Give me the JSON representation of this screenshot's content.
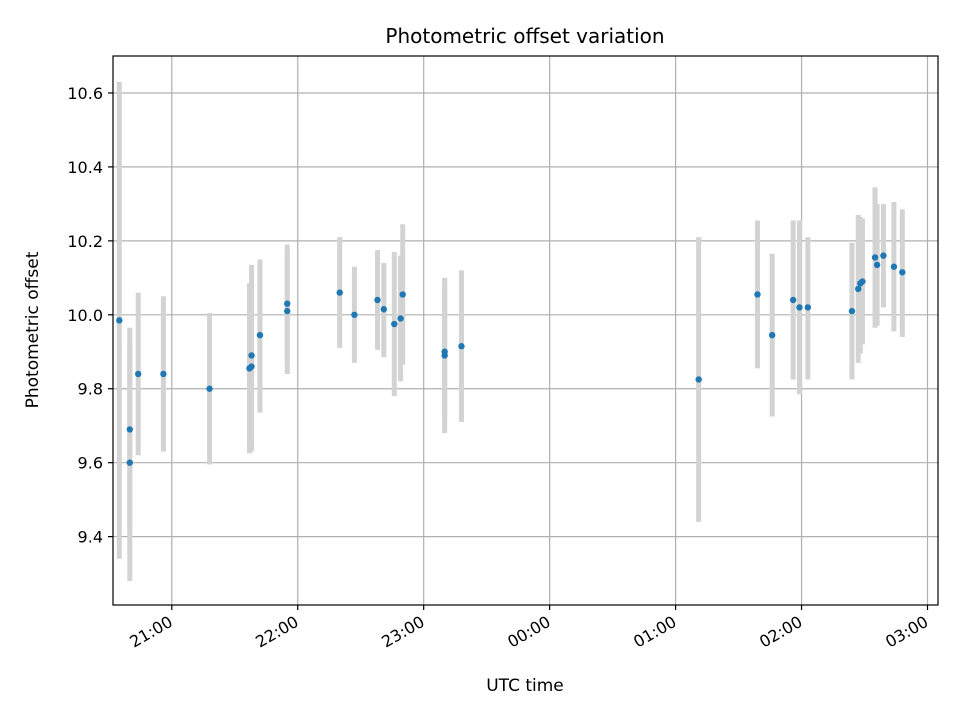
{
  "chart_data": {
    "type": "scatter",
    "title": "Photometric offset variation",
    "xlabel": "UTC time",
    "ylabel": "Photometric offset",
    "x_axis_kind": "time",
    "xlim": [
      "20:32",
      "03:05"
    ],
    "ylim": [
      9.215,
      10.7
    ],
    "x_ticks": [
      "21:00",
      "22:00",
      "23:00",
      "00:00",
      "01:00",
      "02:00",
      "03:00"
    ],
    "y_ticks": [
      9.4,
      9.6,
      9.8,
      10.0,
      10.2,
      10.4,
      10.6
    ],
    "grid": true,
    "colors": {
      "points": "#1f77b4",
      "errorbars": "#d3d3d3",
      "grid": "#b0b0b0"
    },
    "points": [
      {
        "x": "20:35",
        "y": 9.985,
        "lo": 9.34,
        "hi": 10.63
      },
      {
        "x": "20:40",
        "y": 9.69,
        "lo": 9.42,
        "hi": 9.965
      },
      {
        "x": "20:40",
        "y": 9.6,
        "lo": 9.28,
        "hi": 9.92
      },
      {
        "x": "20:44",
        "y": 9.84,
        "lo": 9.62,
        "hi": 10.06
      },
      {
        "x": "20:56",
        "y": 9.84,
        "lo": 9.63,
        "hi": 10.05
      },
      {
        "x": "21:18",
        "y": 9.8,
        "lo": 9.595,
        "hi": 10.005
      },
      {
        "x": "21:37",
        "y": 9.855,
        "lo": 9.625,
        "hi": 10.085
      },
      {
        "x": "21:38",
        "y": 9.89,
        "lo": 9.645,
        "hi": 10.135
      },
      {
        "x": "21:38",
        "y": 9.86,
        "lo": 9.63,
        "hi": 10.09
      },
      {
        "x": "21:42",
        "y": 9.945,
        "lo": 9.735,
        "hi": 10.15
      },
      {
        "x": "21:55",
        "y": 10.01,
        "lo": 9.84,
        "hi": 10.17
      },
      {
        "x": "21:55",
        "y": 10.03,
        "lo": 9.87,
        "hi": 10.19
      },
      {
        "x": "22:20",
        "y": 10.06,
        "lo": 9.91,
        "hi": 10.21
      },
      {
        "x": "22:27",
        "y": 10.0,
        "lo": 9.87,
        "hi": 10.13
      },
      {
        "x": "22:38",
        "y": 10.04,
        "lo": 9.905,
        "hi": 10.175
      },
      {
        "x": "22:41",
        "y": 10.015,
        "lo": 9.885,
        "hi": 10.14
      },
      {
        "x": "22:46",
        "y": 9.975,
        "lo": 9.78,
        "hi": 10.17
      },
      {
        "x": "22:49",
        "y": 9.99,
        "lo": 9.82,
        "hi": 10.16
      },
      {
        "x": "22:50",
        "y": 10.055,
        "lo": 9.865,
        "hi": 10.245
      },
      {
        "x": "23:10",
        "y": 9.9,
        "lo": 9.72,
        "hi": 10.09
      },
      {
        "x": "23:10",
        "y": 9.89,
        "lo": 9.68,
        "hi": 10.1
      },
      {
        "x": "23:18",
        "y": 9.915,
        "lo": 9.71,
        "hi": 10.12
      },
      {
        "x": "01:11",
        "y": 9.825,
        "lo": 9.44,
        "hi": 10.21
      },
      {
        "x": "01:39",
        "y": 10.055,
        "lo": 9.855,
        "hi": 10.255
      },
      {
        "x": "01:46",
        "y": 9.945,
        "lo": 9.725,
        "hi": 10.165
      },
      {
        "x": "01:56",
        "y": 10.04,
        "lo": 9.825,
        "hi": 10.255
      },
      {
        "x": "01:59",
        "y": 10.02,
        "lo": 9.785,
        "hi": 10.255
      },
      {
        "x": "02:03",
        "y": 10.02,
        "lo": 9.825,
        "hi": 10.21
      },
      {
        "x": "02:24",
        "y": 10.01,
        "lo": 9.825,
        "hi": 10.195
      },
      {
        "x": "02:27",
        "y": 10.07,
        "lo": 9.87,
        "hi": 10.27
      },
      {
        "x": "02:28",
        "y": 10.085,
        "lo": 9.895,
        "hi": 10.265
      },
      {
        "x": "02:29",
        "y": 10.09,
        "lo": 9.92,
        "hi": 10.26
      },
      {
        "x": "02:35",
        "y": 10.155,
        "lo": 9.965,
        "hi": 10.345
      },
      {
        "x": "02:36",
        "y": 10.135,
        "lo": 9.97,
        "hi": 10.3
      },
      {
        "x": "02:39",
        "y": 10.16,
        "lo": 10.02,
        "hi": 10.3
      },
      {
        "x": "02:44",
        "y": 10.13,
        "lo": 9.955,
        "hi": 10.305
      },
      {
        "x": "02:48",
        "y": 10.115,
        "lo": 9.94,
        "hi": 10.285
      }
    ]
  }
}
